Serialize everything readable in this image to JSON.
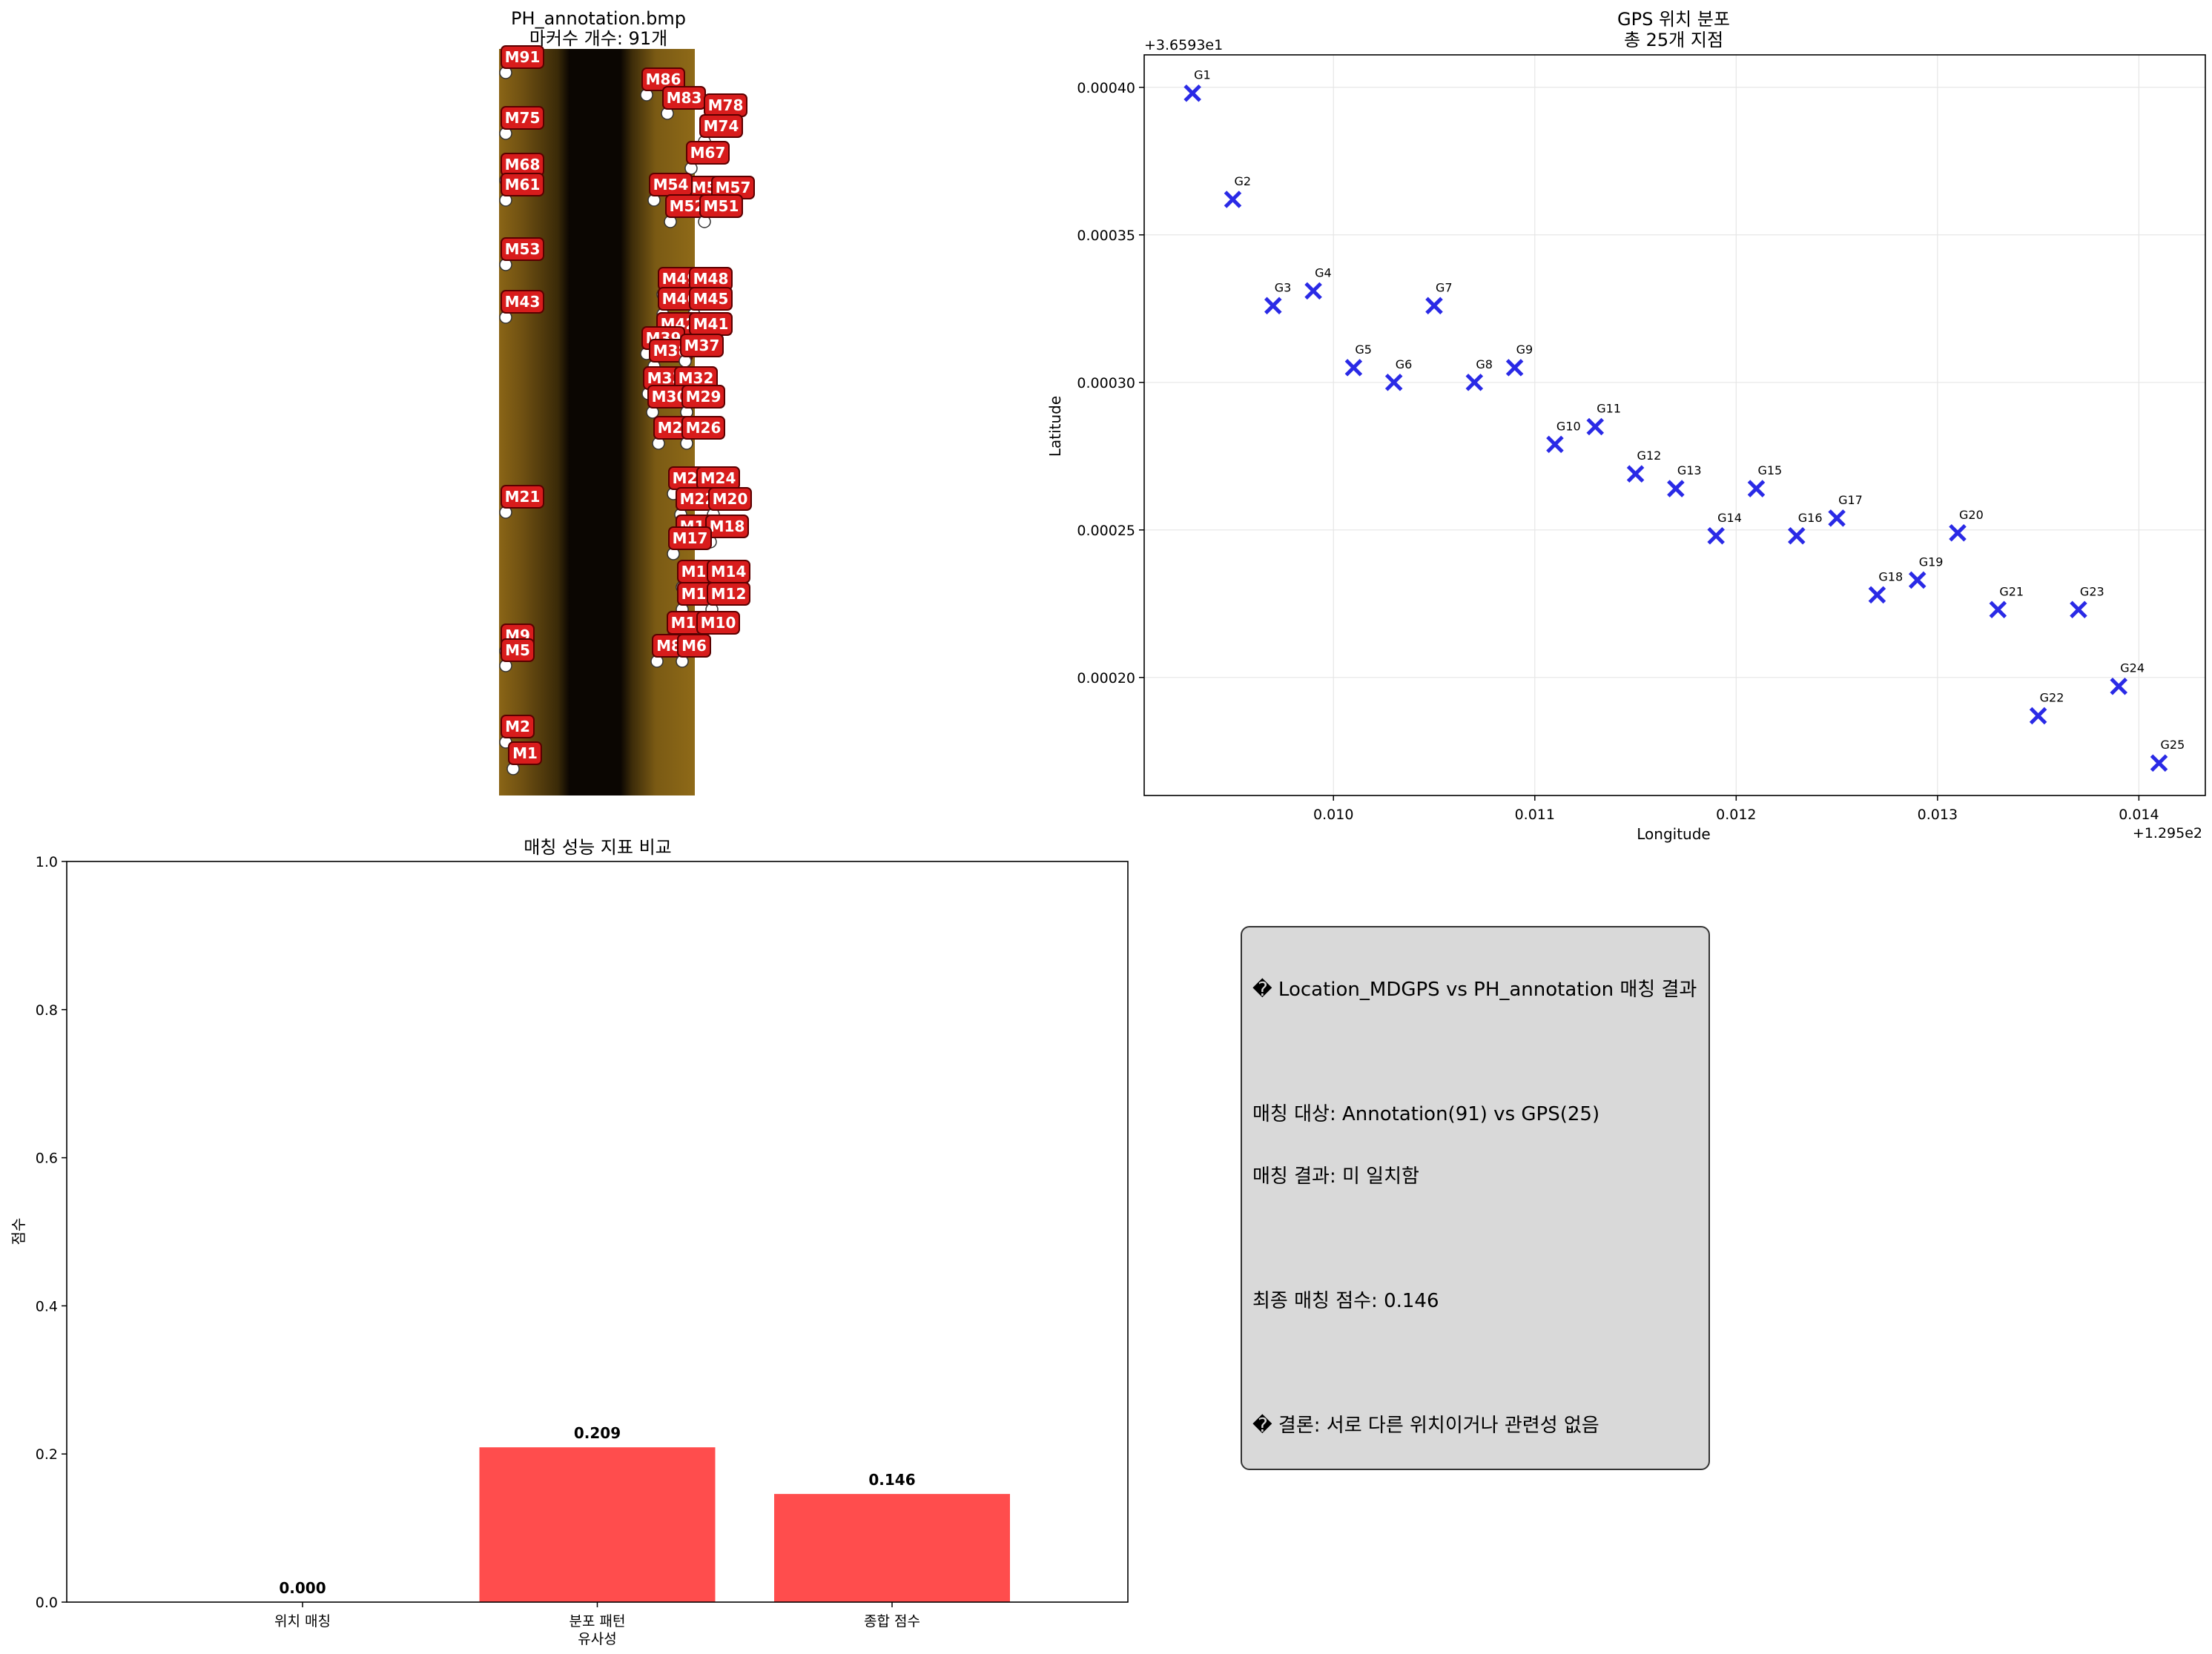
{
  "chart_data": [
    {
      "type": "scatter",
      "panel": "annotation-image",
      "title": "PH_annotation.bmp",
      "subtitle": "마커수 개수: 91개",
      "markers_visible": [
        "M91",
        "M86",
        "M83",
        "M78",
        "M75",
        "M74",
        "M68",
        "M67",
        "M61",
        "M59",
        "M57",
        "M54",
        "M53",
        "M52",
        "M51",
        "M49",
        "M48",
        "M46",
        "M45",
        "M43",
        "M42",
        "M41",
        "M39",
        "M38",
        "M37",
        "M33",
        "M32",
        "M30",
        "M29",
        "M27",
        "M26",
        "M25",
        "M24",
        "M22",
        "M21",
        "M20",
        "M19",
        "M18",
        "M17",
        "M15",
        "M14",
        "M13",
        "M12",
        "M11",
        "M10",
        "M9",
        "M8",
        "M6",
        "M5",
        "M2",
        "M1"
      ],
      "marker_color": "#d81c1c"
    },
    {
      "type": "scatter",
      "panel": "gps-positions",
      "title": "GPS 위치 분포",
      "subtitle": "총 25개 지점",
      "xlabel": "Longitude",
      "ylabel": "Latitude",
      "x_offset_label": "+1.295e2",
      "y_offset_label": "+3.6593e1",
      "xlim": [
        0.00906,
        0.01433
      ],
      "ylim": [
        0.00016,
        0.000411
      ],
      "xticks": [
        "0.010",
        "0.011",
        "0.012",
        "0.013",
        "0.014"
      ],
      "xtick_values": [
        0.01,
        0.011,
        0.012,
        0.013,
        0.014
      ],
      "yticks": [
        "0.00020",
        "0.00025",
        "0.00030",
        "0.00035",
        "0.00040"
      ],
      "ytick_values": [
        0.0002,
        0.00025,
        0.0003,
        0.00035,
        0.0004
      ],
      "grid": true,
      "marker": "x",
      "color": "#2a2ae6",
      "points": [
        {
          "label": "G1",
          "x": 0.0093,
          "y": 0.000398
        },
        {
          "label": "G2",
          "x": 0.0095,
          "y": 0.000362
        },
        {
          "label": "G3",
          "x": 0.0097,
          "y": 0.000326
        },
        {
          "label": "G4",
          "x": 0.0099,
          "y": 0.000331
        },
        {
          "label": "G5",
          "x": 0.0101,
          "y": 0.000305
        },
        {
          "label": "G6",
          "x": 0.0103,
          "y": 0.0003
        },
        {
          "label": "G7",
          "x": 0.0105,
          "y": 0.000326
        },
        {
          "label": "G8",
          "x": 0.0107,
          "y": 0.0003
        },
        {
          "label": "G9",
          "x": 0.0109,
          "y": 0.000305
        },
        {
          "label": "G10",
          "x": 0.0111,
          "y": 0.000279
        },
        {
          "label": "G11",
          "x": 0.0113,
          "y": 0.000285
        },
        {
          "label": "G12",
          "x": 0.0115,
          "y": 0.000269
        },
        {
          "label": "G13",
          "x": 0.0117,
          "y": 0.000264
        },
        {
          "label": "G14",
          "x": 0.0119,
          "y": 0.000248
        },
        {
          "label": "G15",
          "x": 0.0121,
          "y": 0.000264
        },
        {
          "label": "G16",
          "x": 0.0123,
          "y": 0.000248
        },
        {
          "label": "G17",
          "x": 0.0125,
          "y": 0.000254
        },
        {
          "label": "G18",
          "x": 0.0127,
          "y": 0.000228
        },
        {
          "label": "G19",
          "x": 0.0129,
          "y": 0.000233
        },
        {
          "label": "G20",
          "x": 0.0131,
          "y": 0.000249
        },
        {
          "label": "G21",
          "x": 0.0133,
          "y": 0.000223
        },
        {
          "label": "G22",
          "x": 0.0135,
          "y": 0.000187
        },
        {
          "label": "G23",
          "x": 0.0137,
          "y": 0.000223
        },
        {
          "label": "G24",
          "x": 0.0139,
          "y": 0.000197
        },
        {
          "label": "G25",
          "x": 0.0141,
          "y": 0.000171
        }
      ]
    },
    {
      "type": "bar",
      "panel": "match-scores",
      "title": "매칭 성능 지표 비교",
      "ylabel": "점수",
      "ylim": [
        0,
        1.0
      ],
      "yticks": [
        "0.0",
        "0.2",
        "0.4",
        "0.6",
        "0.8",
        "1.0"
      ],
      "ytick_values": [
        0,
        0.2,
        0.4,
        0.6,
        0.8,
        1.0
      ],
      "categories": [
        "위치 매칭",
        "분포 패턴\n유사성",
        "종합 점수"
      ],
      "values": [
        0.0,
        0.209,
        0.146
      ],
      "value_labels": [
        "0.000",
        "0.209",
        "0.146"
      ],
      "color": "#ff4d4d"
    }
  ],
  "info_box": {
    "lines": [
      "� Location_MDGPS vs PH_annotation 매칭 결과",
      "",
      "매칭 대상: Annotation(91) vs GPS(25)",
      "매칭 결과: 미 일치함",
      "",
      "최종 매칭 점수: 0.146",
      "",
      "� 결론: 서로 다른 위치이거나 관련성 없음"
    ]
  }
}
